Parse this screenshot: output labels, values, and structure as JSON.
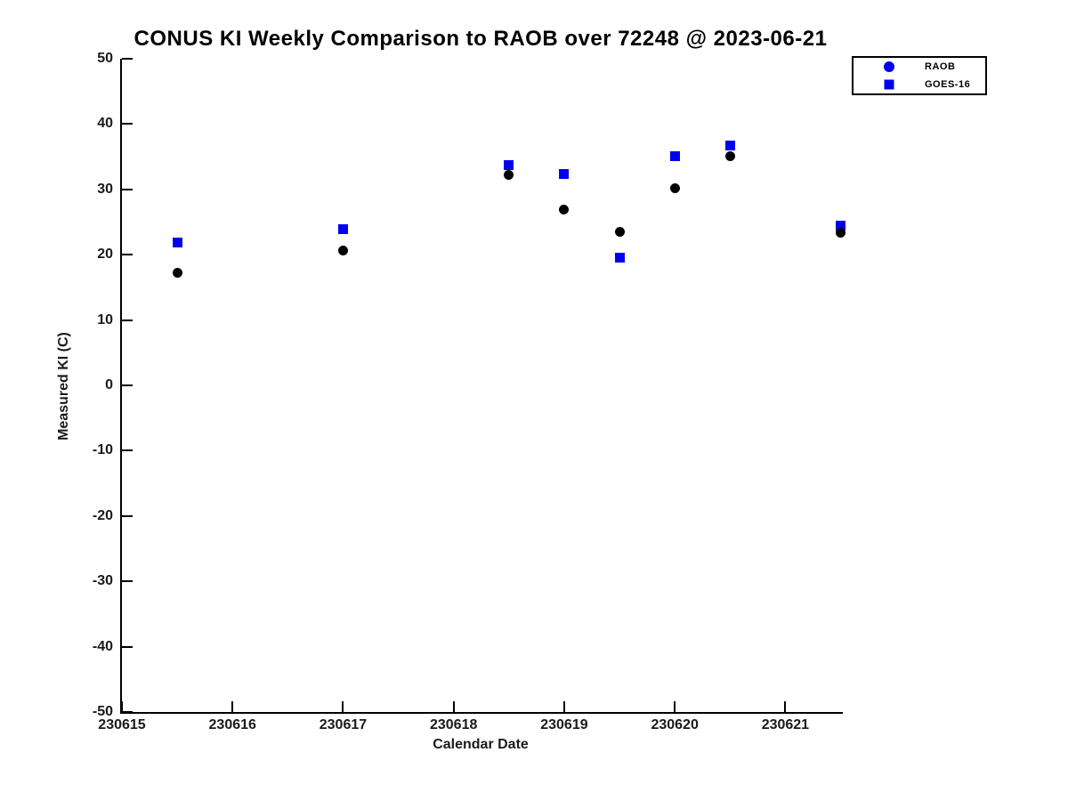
{
  "chart_data": {
    "type": "scatter",
    "title": "CONUS KI Weekly Comparison to RAOB over 72248 @ 2023-06-21",
    "xlabel": "Calendar Date",
    "ylabel": "Measured KI (C)",
    "xlim": [
      230615,
      230621.52
    ],
    "ylim": [
      -50,
      50
    ],
    "x_ticks": [
      230615,
      230616,
      230617,
      230618,
      230619,
      230620,
      230621
    ],
    "y_ticks": [
      -50,
      -40,
      -30,
      -20,
      -10,
      0,
      10,
      20,
      30,
      40,
      50
    ],
    "grid": false,
    "legend_position": "top-right",
    "axis_color": "#000000",
    "x": [
      230615.5,
      230617.0,
      230618.5,
      230619.0,
      230619.5,
      230620.0,
      230620.5,
      230621.5
    ],
    "series": [
      {
        "name": "RAOB",
        "marker": "circle",
        "color": "#000000",
        "legend_marker_color": "#0000ee",
        "values": [
          17.2,
          20.6,
          32.2,
          26.9,
          23.5,
          30.2,
          35.1,
          23.3
        ]
      },
      {
        "name": "GOES-16",
        "marker": "square",
        "color": "#0000ee",
        "legend_marker_color": "#0000ee",
        "values": [
          21.8,
          23.9,
          33.7,
          32.3,
          19.6,
          35.1,
          36.7,
          24.5
        ]
      }
    ]
  },
  "legend": {
    "items": [
      {
        "label": "RAOB",
        "marker": "circle"
      },
      {
        "label": "GOES-16",
        "marker": "square"
      }
    ]
  }
}
